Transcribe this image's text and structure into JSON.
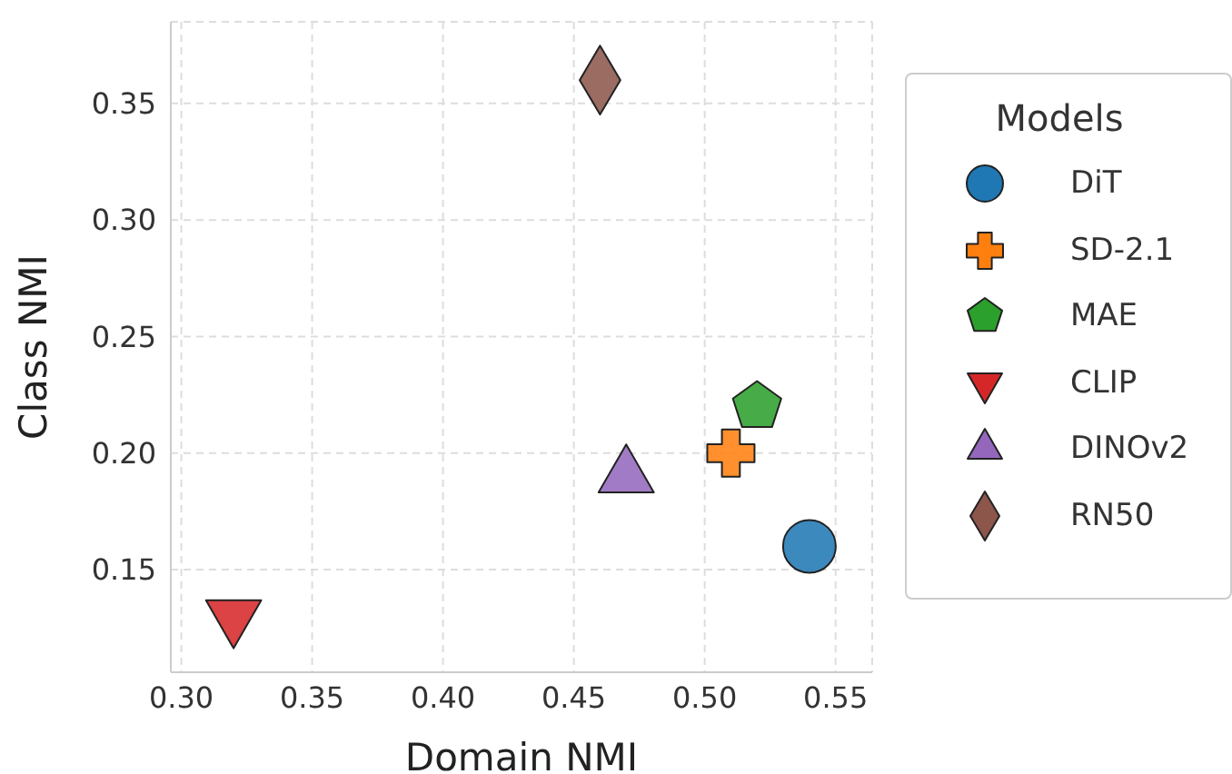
{
  "chart_data": {
    "type": "scatter",
    "xlabel": "Domain NMI",
    "ylabel": "Class NMI",
    "legend_title": "Models",
    "legend": "right",
    "grid": true,
    "line_style": "dashed",
    "xlim": [
      0.296,
      0.564
    ],
    "xticks": [
      {
        "value": 0.3,
        "label": "0.30"
      },
      0.35,
      {
        "value": 0.4,
        "label": "0.40"
      },
      0.45,
      {
        "value": 0.5,
        "label": "0.50"
      },
      0.55
    ],
    "ylim": [
      0.106,
      0.385
    ],
    "yticks": [
      0.15,
      {
        "value": 0.2,
        "label": "0.20"
      },
      0.25,
      {
        "value": 0.3,
        "label": "0.30"
      },
      0.35
    ],
    "series": [
      {
        "name": "DiT",
        "color": "#1f77b4",
        "marker": "circle",
        "x": [
          0.54
        ],
        "values": [
          0.16
        ]
      },
      {
        "name": "SD-2.1",
        "color": "#ff7f0e",
        "marker": "cross",
        "x": [
          0.51
        ],
        "values": [
          0.2
        ]
      },
      {
        "name": "MAE",
        "color": "#2ca02c",
        "x": [
          0.52
        ],
        "values": [
          0.22
        ]
      },
      {
        "name": "CLIP",
        "color": "#d62728",
        "marker": "triangle-down",
        "x": [
          0.32
        ],
        "values": [
          0.13
        ]
      },
      {
        "name": "DINOv2",
        "color": "#9467bd",
        "marker": "triangle",
        "x": [
          0.47
        ],
        "values": [
          0.19
        ]
      },
      {
        "name": "RN50",
        "color": "#8c564b",
        "marker": "diamond",
        "x": [
          0.46
        ],
        "values": [
          0.36
        ]
      }
    ]
  }
}
